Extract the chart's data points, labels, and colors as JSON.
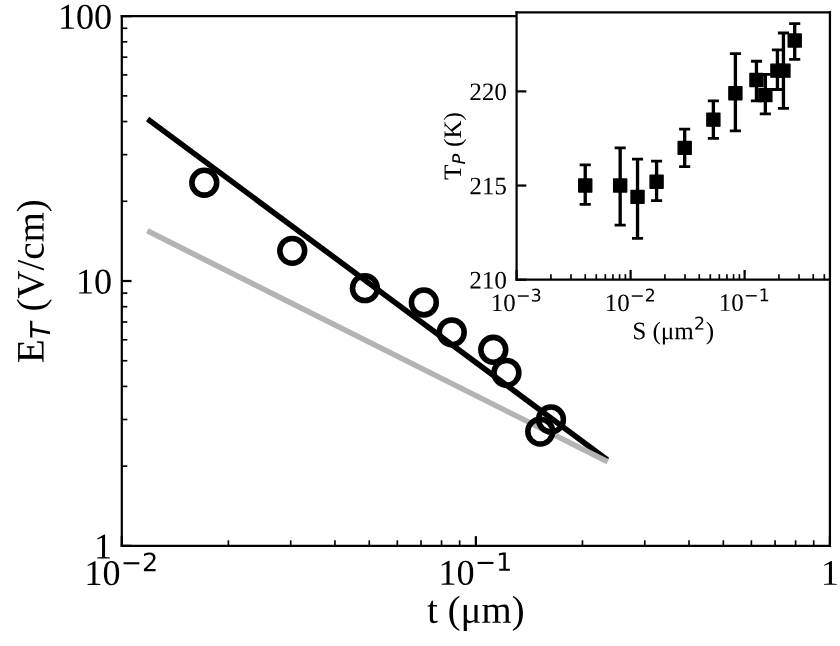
{
  "chart_data": [
    {
      "type": "scatter",
      "xlabel": "t (μm)",
      "ylabel": "E$_{T}$ (V/cm)",
      "log": "xy",
      "xlim": [
        0.01,
        1
      ],
      "ylim": [
        1,
        100
      ],
      "xticks": [
        {
          "value": 0.01,
          "label": "10$^{−2}$"
        },
        {
          "value": 0.1,
          "label": "10$^{−1}$"
        },
        1
      ],
      "yticks": [
        1,
        10,
        100
      ],
      "series": [
        {
          "marker": "circle",
          "color": "#000000",
          "x": [
            0.0171,
            0.0303,
            0.0486,
            0.0713,
            0.0855,
            0.112,
            0.122,
            0.152,
            0.163
          ],
          "values": [
            23.5,
            13.0,
            9.4,
            8.3,
            6.4,
            5.5,
            4.5,
            2.7,
            3.0
          ]
        },
        {
          "type": "line",
          "marker": "none",
          "color": "#000000",
          "x": [
            0.012,
            0.232
          ],
          "values": [
            40.3,
            2.14
          ]
        },
        {
          "type": "line",
          "marker": "none",
          "color": "#b4b4b4",
          "x": [
            0.012,
            0.232
          ],
          "values": [
            15.3,
            2.1
          ]
        }
      ]
    },
    {
      "type": "scatter",
      "xlabel": "S (μm$^{2}$)",
      "ylabel": "T$_{P}$ (K)",
      "log": "x",
      "marker": "square",
      "xlim": [
        0.001,
        0.56
      ],
      "ylim": [
        210,
        224.2
      ],
      "xticks": [
        {
          "value": 0.001,
          "label": "10$^{−3}$"
        },
        {
          "value": 0.01,
          "label": "10$^{−2}$"
        },
        {
          "value": 0.1,
          "label": "10$^{−1}$"
        }
      ],
      "yticks": [
        210,
        215,
        220
      ],
      "series": [
        {
          "color": "#000000",
          "x": [
            0.004,
            0.0081,
            0.0115,
            0.0169,
            0.0298,
            0.0532,
            0.083,
            0.127,
            0.152,
            0.194,
            0.219,
            0.275
          ],
          "values": [
            215.0,
            215.0,
            214.4,
            215.2,
            217.0,
            218.5,
            219.9,
            220.6,
            219.8,
            221.1,
            221.1,
            222.7
          ],
          "errors": [
            [
              214.0,
              216.1
            ],
            [
              212.9,
              217.0
            ],
            [
              212.2,
              216.4
            ],
            [
              214.2,
              216.3
            ],
            [
              216.0,
              218.0
            ],
            [
              217.5,
              219.5
            ],
            [
              217.9,
              222.0
            ],
            [
              219.5,
              221.6
            ],
            [
              218.8,
              220.9
            ],
            [
              220.1,
              222.2
            ],
            [
              219.1,
              223.1
            ],
            [
              221.7,
              223.6
            ]
          ]
        }
      ]
    }
  ]
}
